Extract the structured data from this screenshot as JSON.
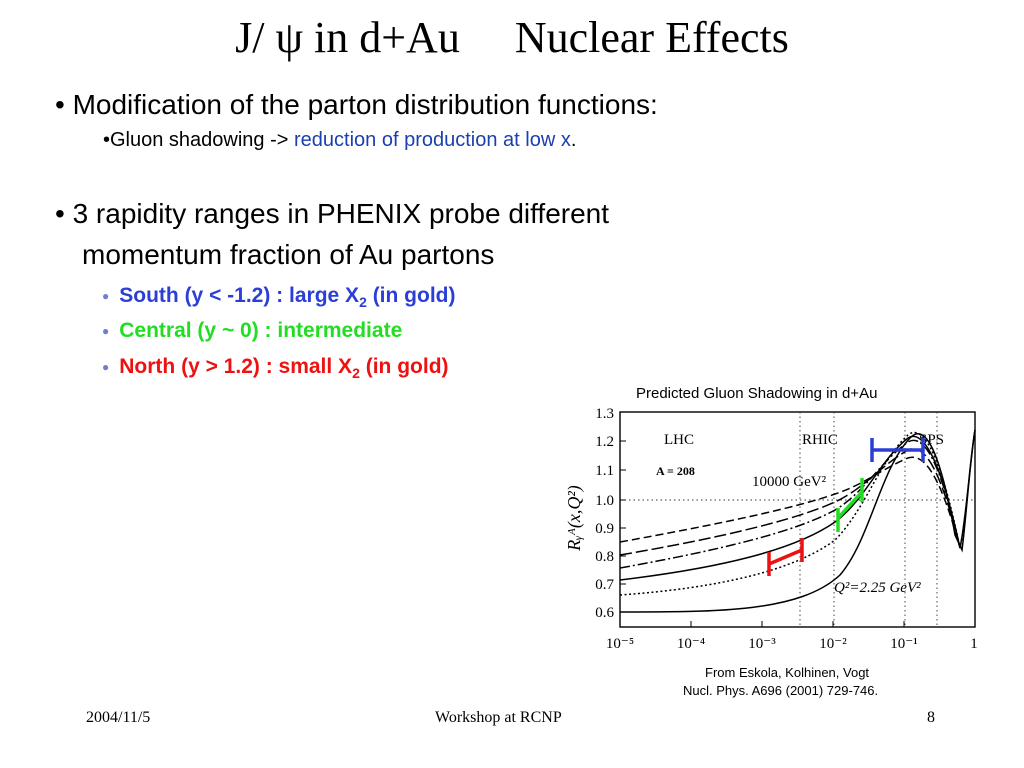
{
  "title": "J/ ψ in d+Au     Nuclear Effects",
  "bullets": {
    "b1": "• Modification of the parton distribution functions:",
    "b1_sub_prefix": "•Gluon shadowing -> ",
    "b1_sub_highlight": "reduction of production at low x",
    "b1_sub_suffix": ".",
    "b2_line1": "• 3 rapidity ranges in PHENIX probe different",
    "b2_line2": "momentum fraction of Au partons",
    "south_main": "South (y < -1.2) : large X",
    "south_sub": "2",
    "south_tail": " (in gold)",
    "central": "Central (y ~ 0) : intermediate",
    "north_main": "North (y > 1.2) : small X",
    "north_sub": "2",
    "north_tail": " (in gold)"
  },
  "figure": {
    "caption": "Predicted Gluon Shadowing in d+Au",
    "labels": {
      "lhc": "LHC",
      "rhic": "RHIC",
      "sps": "SPS",
      "a": "A = 208",
      "q_high": "10000 GeV²",
      "q_low": "Q²=2.25 GeV²",
      "ylabel": "Rᵧᴬ(x,Q²)"
    },
    "yticks": [
      "1.3",
      "1.2",
      "1.1",
      "1.0",
      "0.9",
      "0.8",
      "0.7",
      "0.6"
    ],
    "xticks": [
      "10⁻⁵",
      "10⁻⁴",
      "10⁻³",
      "10⁻²",
      "10⁻¹",
      "1"
    ],
    "colors": {
      "south": "#2b3fd6",
      "central": "#22dd22",
      "north": "#ee1111"
    }
  },
  "credit": {
    "line1": "From Eskola, Kolhinen, Vogt",
    "line2": "Nucl. Phys. A696 (2001) 729-746."
  },
  "footer": {
    "date": "2004/11/5",
    "event": "Workshop at RCNP",
    "page": "8"
  }
}
